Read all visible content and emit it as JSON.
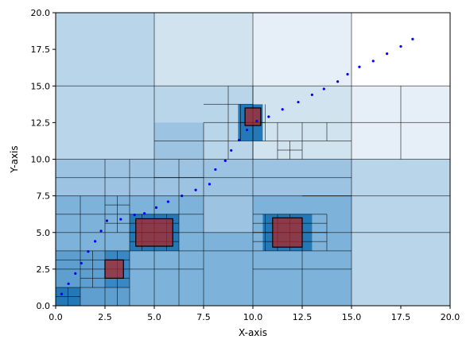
{
  "chart_data": {
    "type": "scatter",
    "title": "",
    "xlabel": "X-axis",
    "ylabel": "Y-axis",
    "xlim": [
      0,
      20
    ],
    "ylim": [
      0,
      20
    ],
    "xticks": [
      "0.0",
      "2.5",
      "5.0",
      "7.5",
      "10.0",
      "12.5",
      "15.0",
      "17.5",
      "20.0"
    ],
    "yticks": [
      "0.0",
      "2.5",
      "5.0",
      "7.5",
      "10.0",
      "12.5",
      "15.0",
      "17.5",
      "20.0"
    ],
    "grid": false,
    "legend": "none",
    "colors": {
      "points": "#0000ff",
      "highlight": "#b22222",
      "cell_edge": "#000000",
      "level_0": "#ffffff",
      "level_1": "#e6eff8",
      "level_2": "#d2e3f0",
      "level_3": "#b9d5ea",
      "level_4": "#9cc4e2",
      "level_5": "#7db3da",
      "level_6": "#5e9fcf",
      "level_7": "#3a88c3",
      "level_8": "#2379b7"
    },
    "series": [
      {
        "marker": "dot",
        "x": [
          0.3,
          0.65,
          1.0,
          1.3,
          1.65,
          2.0,
          2.3,
          2.6,
          3.3,
          4.0,
          4.5,
          5.1,
          5.7,
          6.4,
          7.1,
          7.8,
          8.1,
          8.6,
          8.9,
          9.3,
          9.7,
          10.2,
          10.8,
          11.5,
          12.3,
          13.0,
          13.6,
          14.3,
          14.8,
          15.4,
          16.1,
          16.8,
          17.5,
          18.1
        ],
        "y": [
          0.8,
          1.5,
          2.2,
          2.9,
          3.7,
          4.4,
          5.1,
          5.8,
          5.9,
          6.2,
          6.3,
          6.7,
          7.1,
          7.5,
          7.9,
          8.3,
          9.3,
          9.9,
          10.6,
          11.3,
          12.0,
          12.6,
          12.9,
          13.4,
          13.9,
          14.4,
          14.8,
          15.3,
          15.8,
          16.3,
          16.7,
          17.2,
          17.7,
          18.2
        ]
      }
    ],
    "regions": [
      {
        "x0": 0,
        "y0": 0,
        "x1": 5,
        "y1": 10,
        "level": 4
      },
      {
        "x0": 0,
        "y0": 10,
        "x1": 5,
        "y1": 20,
        "level": 3
      },
      {
        "x0": 5,
        "y0": 0,
        "x1": 10,
        "y1": 10,
        "level": 4
      },
      {
        "x0": 5,
        "y0": 10,
        "x1": 10,
        "y1": 15,
        "level": 3
      },
      {
        "x0": 5,
        "y0": 15,
        "x1": 10,
        "y1": 20,
        "level": 2
      },
      {
        "x0": 10,
        "y0": 0,
        "x1": 15,
        "y1": 10,
        "level": 4
      },
      {
        "x0": 10,
        "y0": 10,
        "x1": 15,
        "y1": 15,
        "level": 2
      },
      {
        "x0": 10,
        "y0": 15,
        "x1": 15,
        "y1": 20,
        "level": 1
      },
      {
        "x0": 15,
        "y0": 0,
        "x1": 20,
        "y1": 10,
        "level": 3
      },
      {
        "x0": 15,
        "y0": 10,
        "x1": 20,
        "y1": 15,
        "level": 1
      },
      {
        "x0": 15,
        "y0": 15,
        "x1": 20,
        "y1": 20,
        "level": 0
      },
      {
        "x0": 0,
        "y0": 0,
        "x1": 5,
        "y1": 7.5,
        "level": 5
      },
      {
        "x0": 5,
        "y0": 0,
        "x1": 7.5,
        "y1": 7.5,
        "level": 5
      },
      {
        "x0": 10,
        "y0": 0,
        "x1": 15,
        "y1": 7.5,
        "level": 5
      },
      {
        "x0": 7.5,
        "y0": 0,
        "x1": 10,
        "y1": 5,
        "level": 5
      },
      {
        "x0": 0,
        "y0": 0,
        "x1": 3.75,
        "y1": 3.75,
        "level": 6
      },
      {
        "x0": 0,
        "y0": 0,
        "x1": 1.25,
        "y1": 1.25,
        "level": 8
      },
      {
        "x0": 2.5,
        "y0": 1.25,
        "x1": 3.75,
        "y1": 3.75,
        "level": 7
      },
      {
        "x0": 3.75,
        "y0": 3.75,
        "x1": 6.25,
        "y1": 6.25,
        "level": 8
      },
      {
        "x0": 10.5,
        "y0": 3.75,
        "x1": 13.0,
        "y1": 6.25,
        "level": 8
      },
      {
        "x0": 9.25,
        "y0": 11.25,
        "x1": 10.5,
        "y1": 13.75,
        "level": 8
      },
      {
        "x0": 5,
        "y0": 10,
        "x1": 7.5,
        "y1": 12.5,
        "level": 4
      }
    ],
    "highlights": [
      {
        "x0": 2.5,
        "y0": 1.875,
        "x1": 3.4375,
        "y1": 3.125
      },
      {
        "x0": 4.0625,
        "y0": 4.0625,
        "x1": 5.9375,
        "y1": 5.9375
      },
      {
        "x0": 11.0,
        "y0": 4.0,
        "x1": 12.5,
        "y1": 6.0
      },
      {
        "x0": 9.6,
        "y0": 12.3,
        "x1": 10.4,
        "y1": 13.5
      }
    ],
    "edges": [
      [
        0,
        5,
        20,
        5
      ],
      [
        0,
        10,
        20,
        10
      ],
      [
        0,
        15,
        20,
        15
      ],
      [
        5,
        0,
        5,
        20
      ],
      [
        10,
        0,
        10,
        20
      ],
      [
        15,
        0,
        15,
        20
      ],
      [
        0,
        7.5,
        15,
        7.5
      ],
      [
        0,
        2.5,
        7.5,
        2.5
      ],
      [
        2.5,
        0,
        2.5,
        10
      ],
      [
        7.5,
        0,
        7.5,
        12.5
      ],
      [
        12.5,
        0,
        12.5,
        5
      ],
      [
        0,
        1.25,
        3.75,
        1.25
      ],
      [
        0,
        3.75,
        15,
        3.75
      ],
      [
        0,
        6.25,
        7.5,
        6.25
      ],
      [
        0,
        8.75,
        7.5,
        8.75
      ],
      [
        1.25,
        0,
        1.25,
        7.5
      ],
      [
        3.75,
        0,
        3.75,
        10
      ],
      [
        6.25,
        0,
        6.25,
        10
      ],
      [
        0.625,
        0,
        0.625,
        1.25
      ],
      [
        0,
        0.625,
        1.25,
        0.625
      ],
      [
        1.875,
        1.25,
        1.875,
        3.75
      ],
      [
        1.25,
        1.875,
        3.75,
        1.875
      ],
      [
        1.25,
        3.125,
        3.75,
        3.125
      ],
      [
        3.125,
        0,
        3.125,
        3.75
      ],
      [
        2.5,
        5.625,
        3.75,
        5.625
      ],
      [
        3.125,
        5.0,
        3.125,
        7.5
      ],
      [
        3.75,
        5.625,
        6.25,
        5.625
      ],
      [
        4.375,
        3.75,
        4.375,
        6.25
      ],
      [
        5.625,
        3.75,
        5.625,
        6.25
      ],
      [
        3.75,
        4.375,
        6.25,
        4.375
      ],
      [
        3.75,
        5.0,
        6.25,
        5.0
      ],
      [
        2.5,
        6.875,
        3.75,
        6.875
      ],
      [
        0,
        3.125,
        1.25,
        3.125
      ],
      [
        10,
        2.5,
        15,
        2.5
      ],
      [
        10,
        6.25,
        13.75,
        6.25
      ],
      [
        13.75,
        3.75,
        13.75,
        6.25
      ],
      [
        10.625,
        3.75,
        10.625,
        6.25
      ],
      [
        11.25,
        3.75,
        11.25,
        6.25
      ],
      [
        11.875,
        3.75,
        11.875,
        6.25
      ],
      [
        10,
        4.375,
        13.75,
        4.375
      ],
      [
        10,
        5.625,
        13.75,
        5.625
      ],
      [
        10,
        5.0,
        13.75,
        5.0
      ],
      [
        7.5,
        11.25,
        15,
        11.25
      ],
      [
        7.5,
        12.5,
        15,
        12.5
      ],
      [
        7.5,
        13.75,
        10,
        13.75
      ],
      [
        8.75,
        10,
        8.75,
        15
      ],
      [
        10,
        10,
        10,
        15
      ],
      [
        11.25,
        10,
        11.25,
        12.5
      ],
      [
        12.5,
        10,
        12.5,
        12.5
      ],
      [
        13.75,
        11.25,
        13.75,
        12.5
      ],
      [
        11.875,
        10.0,
        11.875,
        11.25
      ],
      [
        11.25,
        10.625,
        12.5,
        10.625
      ],
      [
        9.375,
        11.25,
        9.375,
        13.75
      ],
      [
        10.625,
        11.25,
        10.625,
        13.75
      ],
      [
        9.375,
        12.5,
        10.625,
        12.5
      ],
      [
        5,
        8.75,
        10,
        8.75
      ],
      [
        5,
        11.25,
        7.5,
        11.25
      ],
      [
        12.5,
        7.5,
        15,
        7.5
      ],
      [
        10,
        8.75,
        15,
        8.75
      ],
      [
        17.5,
        10,
        17.5,
        15
      ],
      [
        15,
        12.5,
        20,
        12.5
      ],
      [
        15,
        7.5,
        20,
        7.5
      ]
    ]
  }
}
